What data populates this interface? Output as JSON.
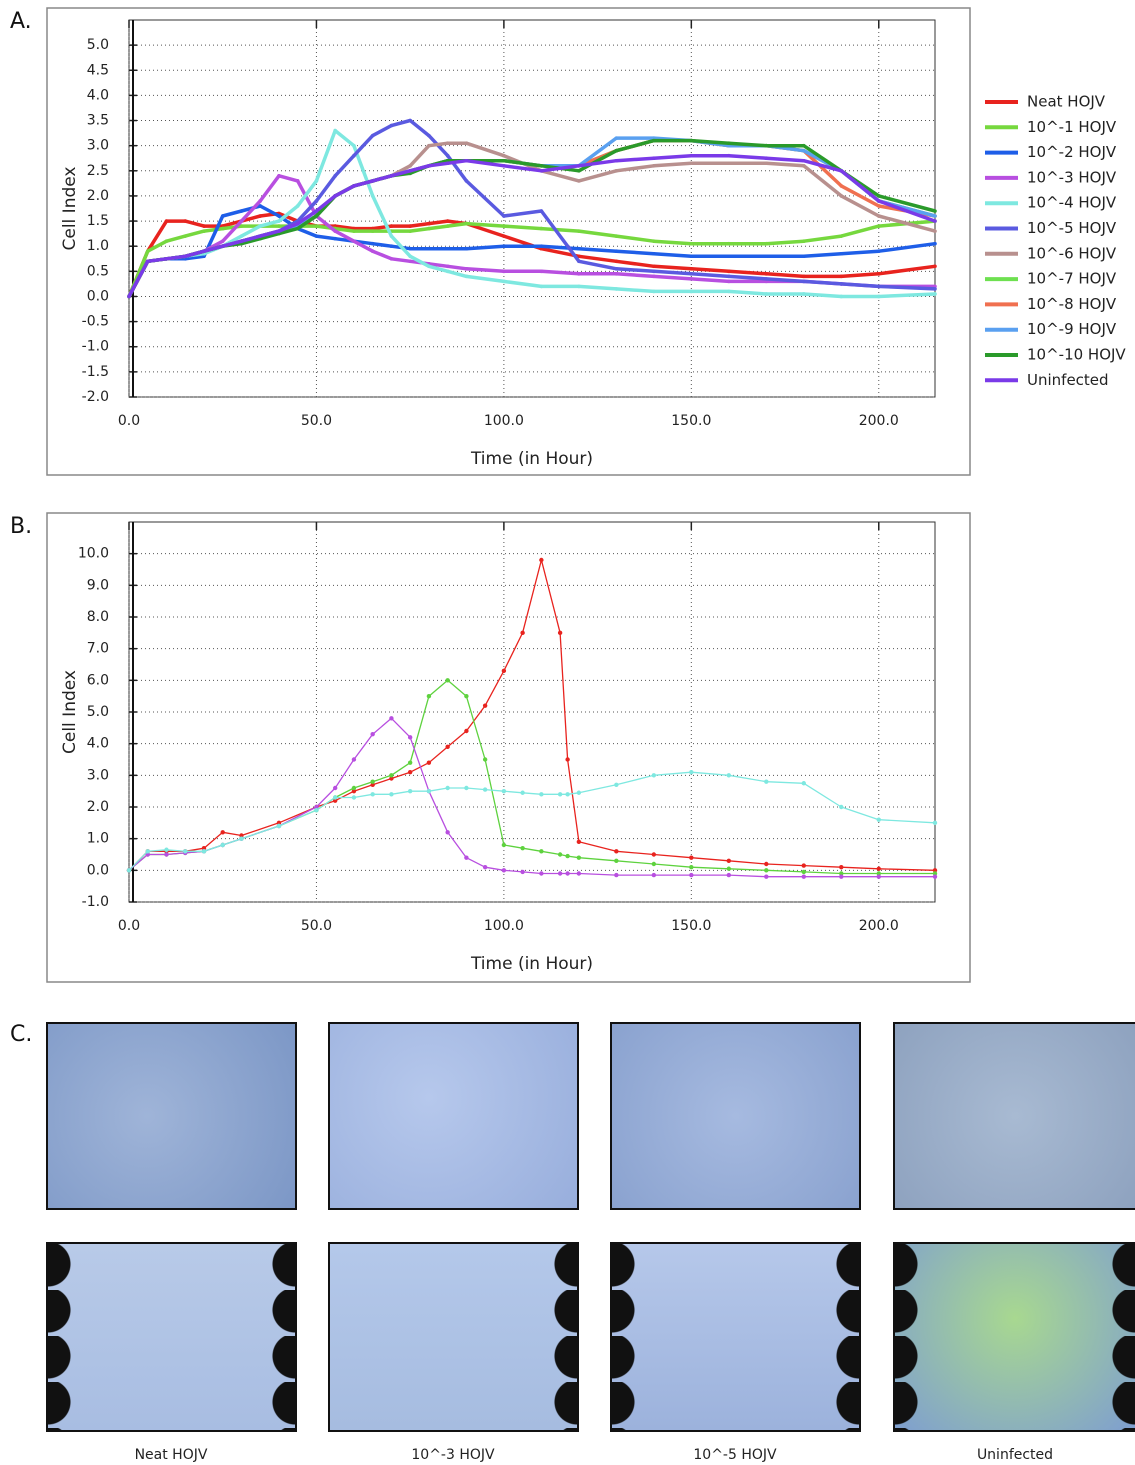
{
  "panel_labels": [
    "A.",
    "B.",
    "C."
  ],
  "chart_data": [
    {
      "type": "line",
      "xlabel": "Time (in Hour)",
      "ylabel": "Cell Index",
      "grid": true,
      "legend": "right",
      "xlim": [
        0,
        215
      ],
      "ylim": [
        -2,
        5.5
      ],
      "xticks": [
        {
          "value": 0,
          "label": "0.0"
        },
        {
          "value": 50,
          "label": "50.0"
        },
        {
          "value": 100,
          "label": "100.0"
        },
        {
          "value": 150,
          "label": "150.0"
        },
        {
          "value": 200,
          "label": "200.0"
        }
      ],
      "yticks": [
        {
          "value": 5,
          "label": "5.0"
        },
        4.5,
        {
          "value": 4,
          "label": "4.0"
        },
        3.5,
        {
          "value": 3,
          "label": "3.0"
        },
        2.5,
        {
          "value": 2,
          "label": "2.0"
        },
        1.5,
        {
          "value": 1,
          "label": "1.0"
        },
        0.5,
        {
          "value": 0,
          "label": "0.0"
        },
        -0.5,
        {
          "value": -1,
          "label": "-1.0"
        },
        -1.5,
        {
          "value": -2,
          "label": "-2.0"
        }
      ],
      "x": [
        0,
        5,
        10,
        15,
        20,
        25,
        30,
        35,
        40,
        45,
        50,
        55,
        60,
        65,
        70,
        75,
        80,
        85,
        90,
        100,
        110,
        120,
        130,
        140,
        150,
        160,
        170,
        180,
        190,
        200,
        215
      ],
      "series": [
        {
          "name": "Neat HOJV",
          "color": "#e8231e",
          "values": [
            0,
            0.9,
            1.5,
            1.5,
            1.4,
            1.4,
            1.5,
            1.6,
            1.65,
            1.5,
            1.4,
            1.4,
            1.35,
            1.35,
            1.4,
            1.4,
            1.45,
            1.5,
            1.45,
            1.2,
            0.95,
            0.8,
            0.7,
            0.6,
            0.55,
            0.5,
            0.45,
            0.4,
            0.4,
            0.45,
            0.6
          ]
        },
        {
          "name": "10^-1 HOJV",
          "color": "#76d83e",
          "values": [
            0,
            0.9,
            1.1,
            1.2,
            1.3,
            1.35,
            1.4,
            1.4,
            1.4,
            1.4,
            1.4,
            1.35,
            1.3,
            1.3,
            1.3,
            1.3,
            1.35,
            1.4,
            1.45,
            1.4,
            1.35,
            1.3,
            1.2,
            1.1,
            1.05,
            1.05,
            1.05,
            1.1,
            1.2,
            1.4,
            1.5
          ]
        },
        {
          "name": "10^-2 HOJV",
          "color": "#1e5ee8",
          "values": [
            0,
            0.7,
            0.75,
            0.75,
            0.8,
            1.6,
            1.7,
            1.8,
            1.6,
            1.35,
            1.2,
            1.15,
            1.1,
            1.05,
            1.0,
            0.95,
            0.95,
            0.95,
            0.95,
            1.0,
            1.0,
            0.95,
            0.9,
            0.85,
            0.8,
            0.8,
            0.8,
            0.8,
            0.85,
            0.9,
            1.05
          ]
        },
        {
          "name": "10^-3 HOJV",
          "color": "#b84fe0",
          "values": [
            0,
            0.7,
            0.75,
            0.8,
            0.9,
            1.1,
            1.5,
            1.9,
            2.4,
            2.3,
            1.6,
            1.3,
            1.1,
            0.9,
            0.75,
            0.7,
            0.65,
            0.6,
            0.55,
            0.5,
            0.5,
            0.45,
            0.45,
            0.4,
            0.35,
            0.3,
            0.3,
            0.3,
            0.25,
            0.2,
            0.2
          ]
        },
        {
          "name": "10^-4 HOJV",
          "color": "#7ee8e0",
          "values": [
            0,
            0.7,
            0.75,
            0.8,
            0.85,
            1.0,
            1.2,
            1.4,
            1.5,
            1.8,
            2.3,
            3.3,
            3.0,
            2.0,
            1.2,
            0.8,
            0.6,
            0.5,
            0.4,
            0.3,
            0.2,
            0.2,
            0.15,
            0.1,
            0.1,
            0.1,
            0.05,
            0.05,
            0.0,
            0.0,
            0.05
          ]
        },
        {
          "name": "10^-5 HOJV",
          "color": "#5a5ae0",
          "values": [
            0,
            0.7,
            0.75,
            0.8,
            0.9,
            1.0,
            1.1,
            1.2,
            1.3,
            1.5,
            1.9,
            2.4,
            2.8,
            3.2,
            3.4,
            3.5,
            3.2,
            2.8,
            2.3,
            1.6,
            1.7,
            0.7,
            0.55,
            0.5,
            0.45,
            0.4,
            0.35,
            0.3,
            0.25,
            0.2,
            0.15
          ]
        },
        {
          "name": "10^-6 HOJV",
          "color": "#b8908e",
          "values": [
            0,
            0.7,
            0.75,
            0.8,
            0.9,
            1.0,
            1.1,
            1.2,
            1.3,
            1.4,
            1.6,
            2.0,
            2.2,
            2.3,
            2.4,
            2.6,
            3.0,
            3.05,
            3.05,
            2.8,
            2.5,
            2.3,
            2.5,
            2.6,
            2.65,
            2.65,
            2.65,
            2.6,
            2.0,
            1.6,
            1.3
          ]
        },
        {
          "name": "10^-7 HOJV",
          "color": "#6ee050",
          "values": [
            0,
            0.7,
            0.75,
            0.8,
            0.9,
            1.0,
            1.1,
            1.2,
            1.3,
            1.4,
            1.6,
            2.0,
            2.2,
            2.3,
            2.4,
            2.5,
            2.6,
            2.7,
            2.7,
            2.7,
            2.6,
            2.6,
            2.9,
            3.1,
            3.1,
            3.0,
            3.0,
            2.9,
            2.5,
            1.9,
            1.6
          ]
        },
        {
          "name": "10^-8 HOJV",
          "color": "#f07050",
          "values": [
            0,
            0.7,
            0.75,
            0.8,
            0.9,
            1.0,
            1.1,
            1.2,
            1.3,
            1.4,
            1.6,
            2.0,
            2.2,
            2.3,
            2.4,
            2.5,
            2.6,
            2.7,
            2.7,
            2.7,
            2.6,
            2.6,
            2.9,
            3.1,
            3.1,
            3.0,
            3.0,
            2.9,
            2.2,
            1.8,
            1.6
          ]
        },
        {
          "name": "10^-9 HOJV",
          "color": "#5aa0f0",
          "values": [
            0,
            0.7,
            0.75,
            0.8,
            0.9,
            1.0,
            1.1,
            1.2,
            1.3,
            1.4,
            1.6,
            2.0,
            2.2,
            2.3,
            2.4,
            2.5,
            2.6,
            2.7,
            2.7,
            2.7,
            2.6,
            2.6,
            3.15,
            3.15,
            3.1,
            3.0,
            3.0,
            2.9,
            2.5,
            1.9,
            1.6
          ]
        },
        {
          "name": "10^-10 HOJV",
          "color": "#2a9a2a",
          "values": [
            0,
            0.7,
            0.75,
            0.8,
            0.9,
            1.0,
            1.05,
            1.15,
            1.25,
            1.35,
            1.6,
            2.0,
            2.2,
            2.3,
            2.4,
            2.45,
            2.6,
            2.7,
            2.7,
            2.7,
            2.6,
            2.5,
            2.9,
            3.1,
            3.1,
            3.05,
            3.0,
            3.0,
            2.5,
            2.0,
            1.7
          ]
        },
        {
          "name": "Uninfected",
          "color": "#7a3ae8",
          "values": [
            0,
            0.7,
            0.75,
            0.8,
            0.9,
            1.0,
            1.1,
            1.2,
            1.3,
            1.45,
            1.7,
            2.0,
            2.2,
            2.3,
            2.4,
            2.5,
            2.6,
            2.65,
            2.7,
            2.6,
            2.5,
            2.6,
            2.7,
            2.75,
            2.8,
            2.8,
            2.75,
            2.7,
            2.5,
            1.9,
            1.5
          ]
        }
      ]
    },
    {
      "type": "line",
      "xlabel": "Time (in Hour)",
      "ylabel": "Cell Index",
      "grid": true,
      "xlim": [
        0,
        215
      ],
      "ylim": [
        -1,
        11
      ],
      "xticks": [
        {
          "value": 0,
          "label": "0.0"
        },
        {
          "value": 50,
          "label": "50.0"
        },
        {
          "value": 100,
          "label": "100.0"
        },
        {
          "value": 150,
          "label": "150.0"
        },
        {
          "value": 200,
          "label": "200.0"
        }
      ],
      "yticks": [
        {
          "value": 10,
          "label": "10.0"
        },
        {
          "value": 9,
          "label": "9.0"
        },
        {
          "value": 8,
          "label": "8.0"
        },
        {
          "value": 7,
          "label": "7.0"
        },
        {
          "value": 6,
          "label": "6.0"
        },
        {
          "value": 5,
          "label": "5.0"
        },
        {
          "value": 4,
          "label": "4.0"
        },
        {
          "value": 3,
          "label": "3.0"
        },
        {
          "value": 2,
          "label": "2.0"
        },
        {
          "value": 1,
          "label": "1.0"
        },
        {
          "value": 0,
          "label": "0.0"
        },
        {
          "value": -1,
          "label": "-1.0"
        }
      ],
      "x": [
        0,
        5,
        10,
        15,
        20,
        25,
        30,
        40,
        50,
        55,
        60,
        65,
        70,
        75,
        80,
        85,
        90,
        95,
        100,
        105,
        110,
        115,
        117,
        120,
        130,
        140,
        150,
        160,
        170,
        180,
        190,
        200,
        215
      ],
      "series": [
        {
          "color": "#e8231e",
          "values": [
            0,
            0.6,
            0.6,
            0.6,
            0.7,
            1.2,
            1.1,
            1.5,
            2.0,
            2.2,
            2.5,
            2.7,
            2.9,
            3.1,
            3.4,
            3.9,
            4.4,
            5.2,
            6.3,
            7.5,
            9.8,
            7.5,
            3.5,
            0.9,
            0.6,
            0.5,
            0.4,
            0.3,
            0.2,
            0.15,
            0.1,
            0.05,
            0.0
          ]
        },
        {
          "color": "#5ed23e",
          "values": [
            0,
            0.5,
            0.5,
            0.55,
            0.6,
            0.8,
            1.0,
            1.4,
            1.9,
            2.3,
            2.6,
            2.8,
            3.0,
            3.4,
            5.5,
            6.0,
            5.5,
            3.5,
            0.8,
            0.7,
            0.6,
            0.5,
            0.45,
            0.4,
            0.3,
            0.2,
            0.1,
            0.05,
            0.0,
            -0.05,
            -0.1,
            -0.1,
            -0.1
          ]
        },
        {
          "color": "#b84fe0",
          "values": [
            0,
            0.5,
            0.5,
            0.55,
            0.6,
            0.8,
            1.0,
            1.4,
            2.0,
            2.6,
            3.5,
            4.3,
            4.8,
            4.2,
            2.5,
            1.2,
            0.4,
            0.1,
            0.0,
            -0.05,
            -0.1,
            -0.1,
            -0.1,
            -0.1,
            -0.15,
            -0.15,
            -0.15,
            -0.15,
            -0.2,
            -0.2,
            -0.2,
            -0.2,
            -0.2
          ]
        },
        {
          "color": "#7ee8e0",
          "values": [
            0,
            0.6,
            0.65,
            0.6,
            0.6,
            0.8,
            1.0,
            1.4,
            1.9,
            2.3,
            2.3,
            2.4,
            2.4,
            2.5,
            2.5,
            2.6,
            2.6,
            2.55,
            2.5,
            2.45,
            2.4,
            2.4,
            2.4,
            2.45,
            2.7,
            3.0,
            3.1,
            3.0,
            2.8,
            2.75,
            2.0,
            1.6,
            1.5
          ]
        }
      ]
    }
  ],
  "image_captions": [
    "Neat HOJV",
    "10^-3 HOJV",
    "10^-5 HOJV",
    "Uninfected"
  ]
}
